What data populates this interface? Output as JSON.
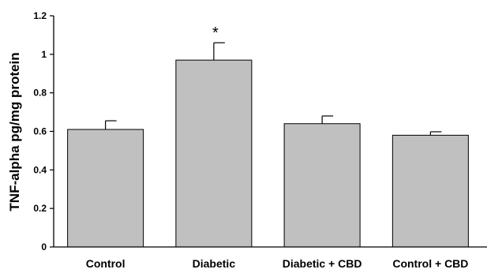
{
  "chart_data": {
    "type": "bar",
    "title": "",
    "xlabel": "",
    "ylabel": "TNF-alpha pg/mg protein",
    "ylim": [
      0,
      1.2
    ],
    "yticks": [
      "0",
      "0.2",
      "0.4",
      "0.6",
      "0.8",
      "1",
      "1.2"
    ],
    "categories": [
      "Control",
      "Diabetic",
      "Diabetic + CBD",
      "Control + CBD"
    ],
    "values": [
      0.61,
      0.97,
      0.64,
      0.58
    ],
    "errors": [
      0.045,
      0.09,
      0.04,
      0.018
    ],
    "annotations": [
      "",
      "*",
      "",
      ""
    ],
    "bar_color": "#c0c0c0",
    "bar_edge_color": "#000000",
    "grid": false,
    "legend": "none"
  }
}
